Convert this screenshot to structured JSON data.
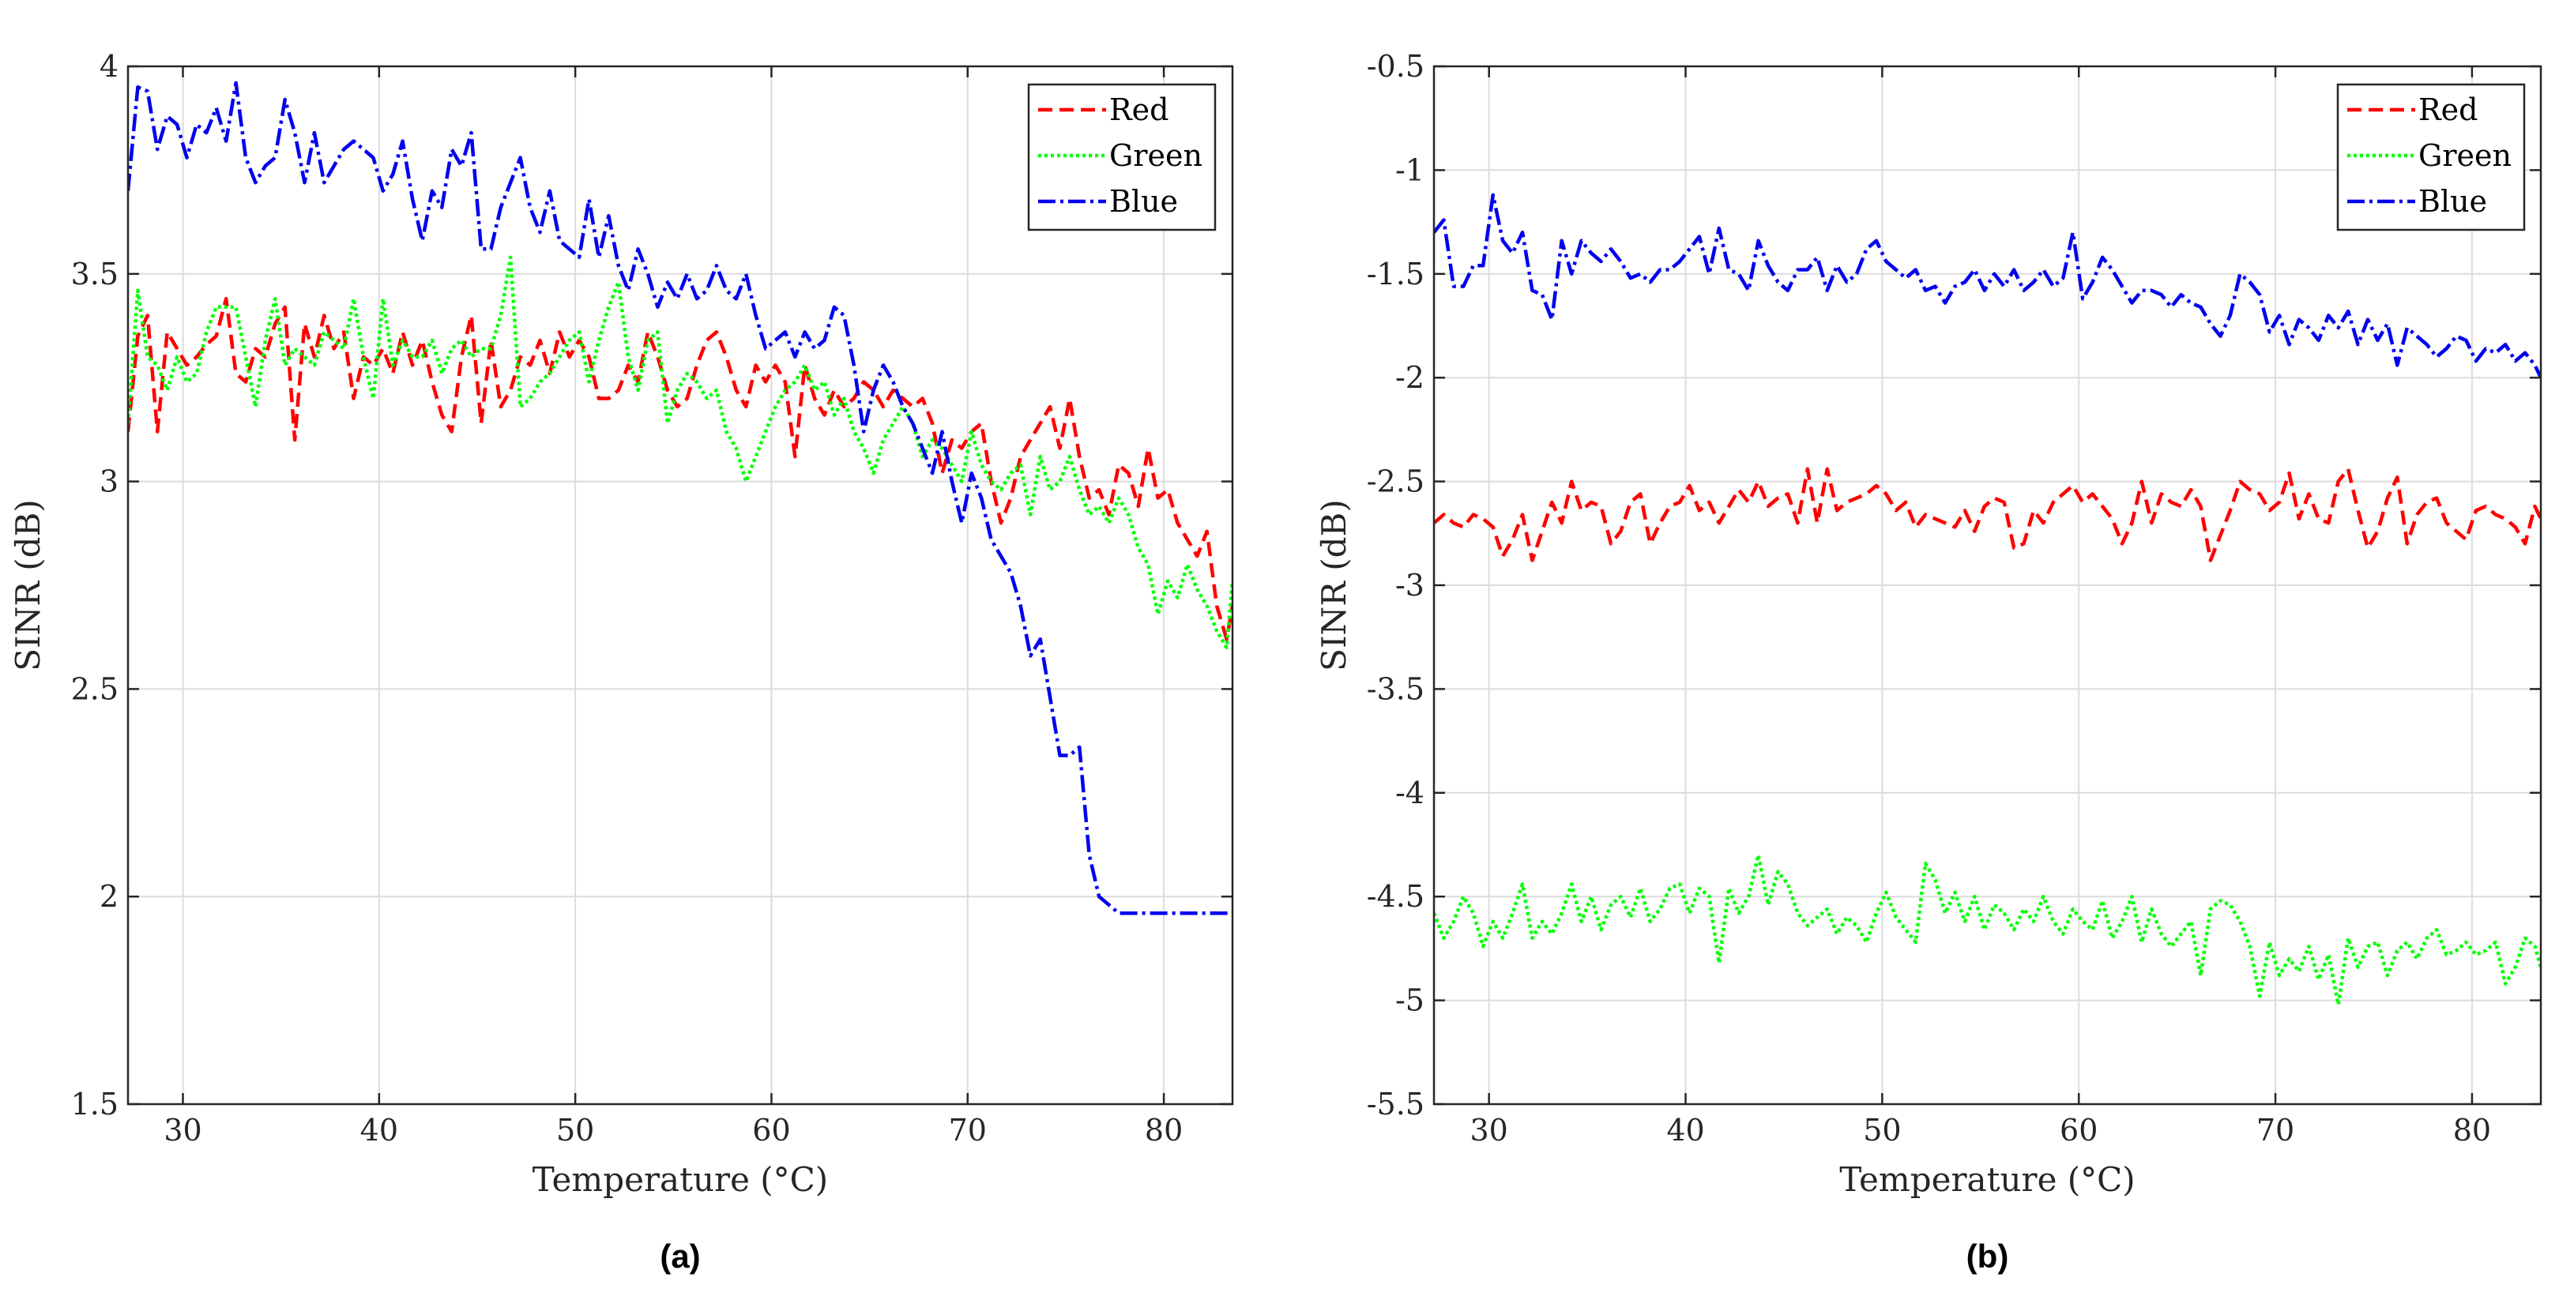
{
  "chart_data": [
    {
      "type": "line",
      "caption": "(a)",
      "xlabel": "Temperature (°C)",
      "ylabel": "SINR (dB)",
      "xlim": [
        27.2,
        83.5
      ],
      "ylim": [
        1.5,
        4
      ],
      "xticks": [
        30,
        40,
        50,
        60,
        70,
        80
      ],
      "yticks": [
        1.5,
        2,
        2.5,
        3,
        3.5,
        4
      ],
      "xtick_labels": [
        "30",
        "40",
        "50",
        "60",
        "70",
        "80"
      ],
      "ytick_labels": [
        "1.5",
        "2",
        "2.5",
        "3",
        "3.5",
        "4"
      ],
      "grid": true,
      "legend": "top-right",
      "x": [
        27.2,
        27.7,
        28.2,
        28.7,
        29.2,
        29.7,
        30.2,
        30.7,
        31.2,
        31.7,
        32.2,
        32.7,
        33.2,
        33.7,
        34.2,
        34.7,
        35.2,
        35.7,
        36.2,
        36.7,
        37.2,
        37.7,
        38.2,
        38.7,
        39.2,
        39.7,
        40.2,
        40.7,
        41.2,
        41.7,
        42.2,
        42.7,
        43.2,
        43.7,
        44.2,
        44.7,
        45.2,
        45.7,
        46.2,
        46.7,
        47.2,
        47.7,
        48.2,
        48.7,
        49.2,
        49.7,
        50.2,
        50.7,
        51.2,
        51.7,
        52.2,
        52.7,
        53.2,
        53.7,
        54.2,
        54.7,
        55.2,
        55.7,
        56.2,
        56.7,
        57.2,
        57.7,
        58.2,
        58.7,
        59.2,
        59.7,
        60.2,
        60.7,
        61.2,
        61.7,
        62.2,
        62.7,
        63.2,
        63.7,
        64.2,
        64.7,
        65.2,
        65.7,
        66.2,
        66.7,
        67.2,
        67.7,
        68.2,
        68.7,
        69.2,
        69.7,
        70.2,
        70.7,
        71.2,
        71.7,
        72.2,
        72.7,
        73.2,
        73.7,
        74.2,
        74.7,
        75.2,
        75.7,
        76.2,
        76.7,
        77.2,
        77.7,
        78.2,
        78.7,
        79.2,
        79.7,
        80.2,
        80.7,
        81.2,
        81.7,
        82.2,
        82.7,
        83.2,
        83.5
      ],
      "series": [
        {
          "name": "Red",
          "color": "#ff0000",
          "dash": "18,9",
          "values": [
            3.12,
            3.35,
            3.4,
            3.12,
            3.36,
            3.32,
            3.28,
            3.3,
            3.33,
            3.35,
            3.44,
            3.26,
            3.24,
            3.32,
            3.3,
            3.38,
            3.42,
            3.1,
            3.38,
            3.3,
            3.4,
            3.32,
            3.36,
            3.2,
            3.3,
            3.28,
            3.32,
            3.26,
            3.36,
            3.28,
            3.34,
            3.24,
            3.16,
            3.12,
            3.3,
            3.4,
            3.14,
            3.34,
            3.18,
            3.22,
            3.3,
            3.28,
            3.34,
            3.26,
            3.36,
            3.3,
            3.34,
            3.3,
            3.2,
            3.2,
            3.22,
            3.28,
            3.24,
            3.36,
            3.3,
            3.22,
            3.18,
            3.2,
            3.28,
            3.34,
            3.36,
            3.3,
            3.22,
            3.18,
            3.28,
            3.24,
            3.28,
            3.24,
            3.06,
            3.28,
            3.2,
            3.16,
            3.22,
            3.18,
            3.2,
            3.24,
            3.22,
            3.18,
            3.22,
            3.2,
            3.18,
            3.2,
            3.14,
            3.02,
            3.1,
            3.08,
            3.12,
            3.14,
            3.0,
            2.9,
            2.96,
            3.06,
            3.1,
            3.14,
            3.18,
            3.08,
            3.2,
            3.06,
            2.96,
            2.98,
            2.92,
            3.04,
            3.02,
            2.94,
            3.08,
            2.96,
            2.98,
            2.9,
            2.86,
            2.82,
            2.88,
            2.7,
            2.62,
            2.7
          ]
        },
        {
          "name": "Green",
          "color": "#00ff00",
          "dash": "4,4",
          "values": [
            3.14,
            3.46,
            3.3,
            3.28,
            3.22,
            3.3,
            3.24,
            3.26,
            3.36,
            3.42,
            3.42,
            3.42,
            3.3,
            3.18,
            3.34,
            3.44,
            3.28,
            3.32,
            3.3,
            3.28,
            3.36,
            3.34,
            3.32,
            3.44,
            3.3,
            3.2,
            3.44,
            3.28,
            3.34,
            3.3,
            3.3,
            3.34,
            3.26,
            3.32,
            3.34,
            3.3,
            3.32,
            3.32,
            3.4,
            3.54,
            3.18,
            3.2,
            3.24,
            3.26,
            3.3,
            3.34,
            3.36,
            3.24,
            3.34,
            3.42,
            3.48,
            3.3,
            3.22,
            3.34,
            3.36,
            3.14,
            3.22,
            3.26,
            3.24,
            3.2,
            3.22,
            3.12,
            3.08,
            3.0,
            3.06,
            3.12,
            3.18,
            3.22,
            3.24,
            3.28,
            3.22,
            3.24,
            3.16,
            3.2,
            3.12,
            3.08,
            3.02,
            3.1,
            3.14,
            3.18,
            3.14,
            3.06,
            3.1,
            3.08,
            3.04,
            3.0,
            3.12,
            3.04,
            3.0,
            2.98,
            3.02,
            3.04,
            2.92,
            3.06,
            2.98,
            3.0,
            3.06,
            2.98,
            2.92,
            2.94,
            2.9,
            2.96,
            2.92,
            2.84,
            2.8,
            2.68,
            2.76,
            2.72,
            2.8,
            2.74,
            2.7,
            2.64,
            2.6,
            2.76
          ]
        },
        {
          "name": "Blue",
          "color": "#0000ee",
          "dash": "22,6,4,6",
          "values": [
            3.7,
            3.95,
            3.94,
            3.8,
            3.88,
            3.86,
            3.78,
            3.86,
            3.84,
            3.9,
            3.82,
            3.96,
            3.78,
            3.72,
            3.76,
            3.78,
            3.92,
            3.84,
            3.72,
            3.84,
            3.72,
            3.76,
            3.8,
            3.82,
            3.8,
            3.78,
            3.7,
            3.74,
            3.82,
            3.68,
            3.58,
            3.7,
            3.66,
            3.8,
            3.76,
            3.84,
            3.56,
            3.56,
            3.66,
            3.72,
            3.78,
            3.66,
            3.6,
            3.7,
            3.58,
            3.56,
            3.54,
            3.68,
            3.54,
            3.64,
            3.52,
            3.46,
            3.56,
            3.5,
            3.42,
            3.48,
            3.44,
            3.5,
            3.44,
            3.46,
            3.52,
            3.46,
            3.44,
            3.5,
            3.4,
            3.32,
            3.34,
            3.36,
            3.3,
            3.36,
            3.32,
            3.34,
            3.42,
            3.4,
            3.28,
            3.12,
            3.22,
            3.28,
            3.24,
            3.18,
            3.14,
            3.08,
            3.02,
            3.12,
            3.0,
            2.9,
            3.02,
            2.96,
            2.86,
            2.82,
            2.78,
            2.7,
            2.58,
            2.62,
            2.48,
            2.34,
            2.34,
            2.36,
            2.1,
            2.0,
            1.98,
            1.96,
            1.96,
            1.96,
            1.96,
            1.96,
            1.96,
            1.96,
            1.96,
            1.96,
            1.96,
            1.96,
            1.96,
            1.96
          ]
        }
      ]
    },
    {
      "type": "line",
      "caption": "(b)",
      "xlabel": "Temperature (°C)",
      "ylabel": "SINR (dB)",
      "xlim": [
        27.2,
        83.5
      ],
      "ylim": [
        -5.5,
        -0.5
      ],
      "xticks": [
        30,
        40,
        50,
        60,
        70,
        80
      ],
      "yticks": [
        -5.5,
        -5,
        -4.5,
        -4,
        -3.5,
        -3,
        -2.5,
        -2,
        -1.5,
        -1,
        -0.5
      ],
      "xtick_labels": [
        "30",
        "40",
        "50",
        "60",
        "70",
        "80"
      ],
      "ytick_labels": [
        "-5.5",
        "-5",
        "-4.5",
        "-4",
        "-3.5",
        "-3",
        "-2.5",
        "-2",
        "-1.5",
        "-1",
        "-0.5"
      ],
      "grid": true,
      "legend": "top-right",
      "x": [
        27.2,
        27.7,
        28.2,
        28.7,
        29.2,
        29.7,
        30.2,
        30.7,
        31.2,
        31.7,
        32.2,
        32.7,
        33.2,
        33.7,
        34.2,
        34.7,
        35.2,
        35.7,
        36.2,
        36.7,
        37.2,
        37.7,
        38.2,
        38.7,
        39.2,
        39.7,
        40.2,
        40.7,
        41.2,
        41.7,
        42.2,
        42.7,
        43.2,
        43.7,
        44.2,
        44.7,
        45.2,
        45.7,
        46.2,
        46.7,
        47.2,
        47.7,
        48.2,
        48.7,
        49.2,
        49.7,
        50.2,
        50.7,
        51.2,
        51.7,
        52.2,
        52.7,
        53.2,
        53.7,
        54.2,
        54.7,
        55.2,
        55.7,
        56.2,
        56.7,
        57.2,
        57.7,
        58.2,
        58.7,
        59.2,
        59.7,
        60.2,
        60.7,
        61.2,
        61.7,
        62.2,
        62.7,
        63.2,
        63.7,
        64.2,
        64.7,
        65.2,
        65.7,
        66.2,
        66.7,
        67.2,
        67.7,
        68.2,
        68.7,
        69.2,
        69.7,
        70.2,
        70.7,
        71.2,
        71.7,
        72.2,
        72.7,
        73.2,
        73.7,
        74.2,
        74.7,
        75.2,
        75.7,
        76.2,
        76.7,
        77.2,
        77.7,
        78.2,
        78.7,
        79.2,
        79.7,
        80.2,
        80.7,
        81.2,
        81.7,
        82.2,
        82.7,
        83.2,
        83.5
      ],
      "series": [
        {
          "name": "Red",
          "color": "#ff0000",
          "dash": "18,9",
          "values": [
            -2.7,
            -2.66,
            -2.7,
            -2.72,
            -2.66,
            -2.68,
            -2.72,
            -2.86,
            -2.78,
            -2.66,
            -2.88,
            -2.74,
            -2.6,
            -2.7,
            -2.5,
            -2.64,
            -2.6,
            -2.62,
            -2.8,
            -2.74,
            -2.6,
            -2.56,
            -2.8,
            -2.7,
            -2.62,
            -2.6,
            -2.52,
            -2.64,
            -2.6,
            -2.7,
            -2.62,
            -2.54,
            -2.6,
            -2.5,
            -2.62,
            -2.58,
            -2.56,
            -2.7,
            -2.44,
            -2.7,
            -2.44,
            -2.64,
            -2.6,
            -2.58,
            -2.56,
            -2.52,
            -2.56,
            -2.64,
            -2.6,
            -2.72,
            -2.66,
            -2.68,
            -2.7,
            -2.72,
            -2.64,
            -2.74,
            -2.62,
            -2.58,
            -2.6,
            -2.82,
            -2.8,
            -2.64,
            -2.7,
            -2.6,
            -2.56,
            -2.52,
            -2.6,
            -2.56,
            -2.62,
            -2.68,
            -2.8,
            -2.7,
            -2.5,
            -2.7,
            -2.56,
            -2.6,
            -2.62,
            -2.54,
            -2.62,
            -2.88,
            -2.76,
            -2.64,
            -2.5,
            -2.54,
            -2.56,
            -2.64,
            -2.6,
            -2.46,
            -2.68,
            -2.56,
            -2.68,
            -2.7,
            -2.5,
            -2.44,
            -2.64,
            -2.82,
            -2.74,
            -2.58,
            -2.48,
            -2.8,
            -2.66,
            -2.6,
            -2.58,
            -2.7,
            -2.74,
            -2.78,
            -2.64,
            -2.62,
            -2.66,
            -2.68,
            -2.72,
            -2.8,
            -2.62,
            -2.68
          ]
        },
        {
          "name": "Green",
          "color": "#00ff00",
          "dash": "4,4",
          "values": [
            -4.58,
            -4.7,
            -4.62,
            -4.5,
            -4.58,
            -4.74,
            -4.62,
            -4.7,
            -4.58,
            -4.44,
            -4.7,
            -4.62,
            -4.68,
            -4.58,
            -4.44,
            -4.62,
            -4.5,
            -4.66,
            -4.54,
            -4.5,
            -4.6,
            -4.46,
            -4.62,
            -4.56,
            -4.46,
            -4.44,
            -4.58,
            -4.46,
            -4.5,
            -4.82,
            -4.46,
            -4.58,
            -4.5,
            -4.3,
            -4.54,
            -4.38,
            -4.44,
            -4.58,
            -4.64,
            -4.6,
            -4.56,
            -4.68,
            -4.6,
            -4.64,
            -4.72,
            -4.58,
            -4.48,
            -4.6,
            -4.66,
            -4.72,
            -4.34,
            -4.42,
            -4.58,
            -4.48,
            -4.62,
            -4.5,
            -4.66,
            -4.54,
            -4.58,
            -4.66,
            -4.56,
            -4.62,
            -4.5,
            -4.62,
            -4.68,
            -4.56,
            -4.62,
            -4.66,
            -4.52,
            -4.7,
            -4.62,
            -4.5,
            -4.72,
            -4.56,
            -4.68,
            -4.74,
            -4.68,
            -4.62,
            -4.88,
            -4.56,
            -4.52,
            -4.54,
            -4.62,
            -4.74,
            -4.98,
            -4.72,
            -4.88,
            -4.8,
            -4.86,
            -4.74,
            -4.9,
            -4.78,
            -5.02,
            -4.7,
            -4.84,
            -4.74,
            -4.72,
            -4.88,
            -4.76,
            -4.72,
            -4.8,
            -4.7,
            -4.66,
            -4.78,
            -4.76,
            -4.72,
            -4.78,
            -4.76,
            -4.72,
            -4.92,
            -4.84,
            -4.7,
            -4.74,
            -4.84
          ]
        },
        {
          "name": "Blue",
          "color": "#0000ee",
          "dash": "22,6,4,6",
          "values": [
            -1.3,
            -1.24,
            -1.56,
            -1.56,
            -1.46,
            -1.46,
            -1.12,
            -1.34,
            -1.4,
            -1.3,
            -1.58,
            -1.6,
            -1.72,
            -1.34,
            -1.5,
            -1.34,
            -1.4,
            -1.44,
            -1.38,
            -1.44,
            -1.52,
            -1.5,
            -1.54,
            -1.48,
            -1.48,
            -1.44,
            -1.38,
            -1.32,
            -1.5,
            -1.28,
            -1.48,
            -1.5,
            -1.58,
            -1.34,
            -1.46,
            -1.54,
            -1.58,
            -1.48,
            -1.48,
            -1.42,
            -1.58,
            -1.46,
            -1.54,
            -1.5,
            -1.38,
            -1.34,
            -1.44,
            -1.48,
            -1.52,
            -1.48,
            -1.58,
            -1.56,
            -1.64,
            -1.56,
            -1.54,
            -1.48,
            -1.58,
            -1.5,
            -1.56,
            -1.48,
            -1.58,
            -1.54,
            -1.48,
            -1.56,
            -1.52,
            -1.3,
            -1.62,
            -1.54,
            -1.42,
            -1.48,
            -1.56,
            -1.64,
            -1.58,
            -1.58,
            -1.6,
            -1.66,
            -1.6,
            -1.64,
            -1.66,
            -1.74,
            -1.8,
            -1.7,
            -1.5,
            -1.54,
            -1.6,
            -1.78,
            -1.7,
            -1.84,
            -1.72,
            -1.76,
            -1.82,
            -1.7,
            -1.76,
            -1.68,
            -1.84,
            -1.72,
            -1.82,
            -1.74,
            -1.94,
            -1.76,
            -1.8,
            -1.84,
            -1.9,
            -1.86,
            -1.8,
            -1.82,
            -1.92,
            -1.86,
            -1.88,
            -1.84,
            -1.92,
            -1.88,
            -1.94,
            -2.0
          ]
        }
      ]
    }
  ]
}
